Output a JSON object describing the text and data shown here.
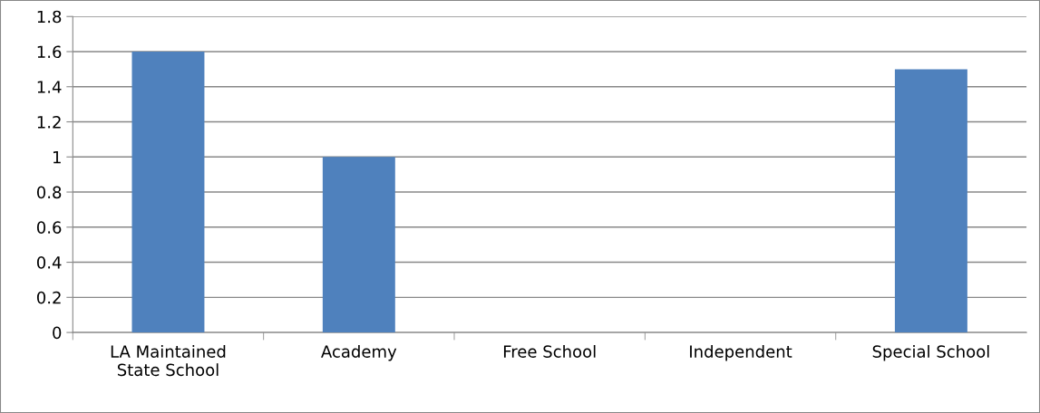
{
  "chart_data": {
    "type": "bar",
    "categories": [
      "LA Maintained\nState School",
      "Academy",
      "Free School",
      "Independent",
      "Special School"
    ],
    "values": [
      1.6,
      1,
      0,
      0,
      1.5
    ],
    "color": "#4f81bd",
    "ylim": [
      0,
      1.8
    ],
    "yticks": [
      0,
      0.2,
      0.4,
      0.6,
      0.8,
      1,
      1.2,
      1.4,
      1.6,
      1.8
    ],
    "grid": "y",
    "legend": false
  }
}
